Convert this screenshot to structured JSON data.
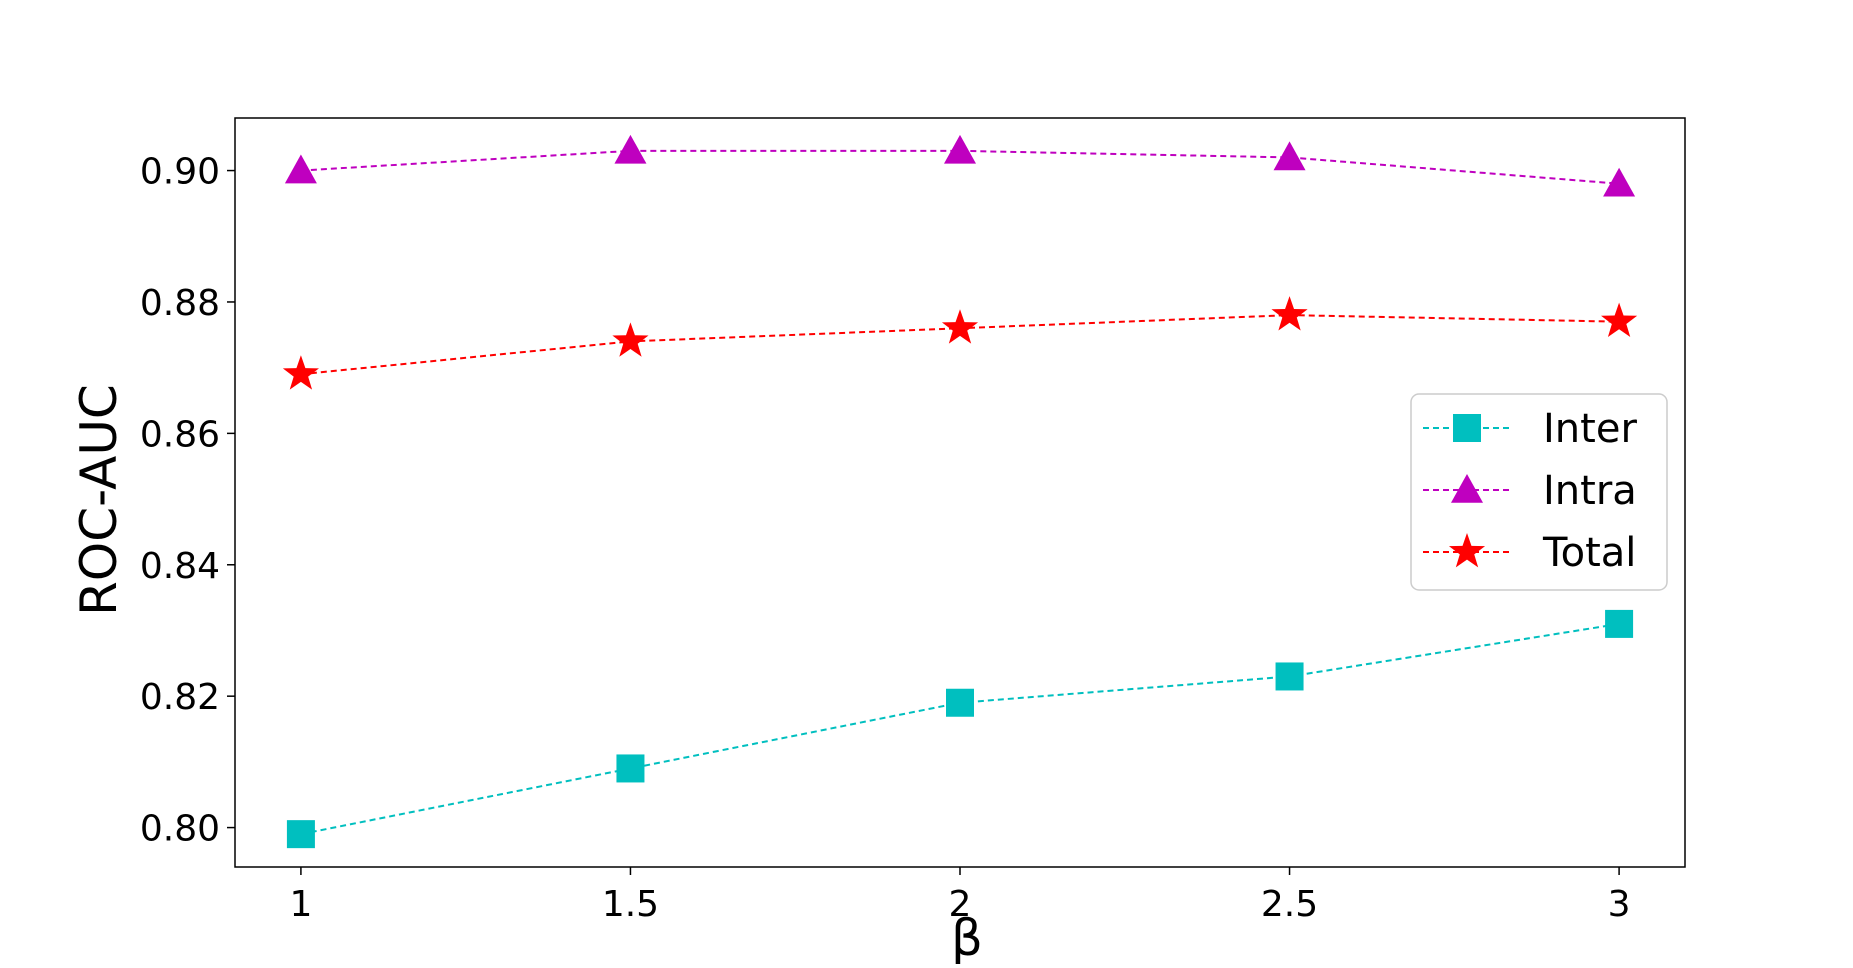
{
  "chart_data": {
    "type": "line",
    "title": "",
    "xlabel": "β",
    "ylabel": "ROC-AUC",
    "x": [
      1,
      1.5,
      2,
      2.5,
      3
    ],
    "x_tick_labels": [
      "1",
      "1.5",
      "2",
      "2.5",
      "3"
    ],
    "xlim": [
      0.9,
      3.1
    ],
    "ylim": [
      0.794,
      0.908
    ],
    "y_ticks": [
      0.8,
      0.82,
      0.84,
      0.86,
      0.88,
      0.9
    ],
    "y_tick_labels": [
      "0.80",
      "0.82",
      "0.84",
      "0.86",
      "0.88",
      "0.90"
    ],
    "grid": false,
    "legend_position": "center-right",
    "series": [
      {
        "name": "Inter",
        "color": "#00bfbf",
        "marker": "square",
        "line_style": "dashed",
        "values": [
          0.799,
          0.809,
          0.819,
          0.823,
          0.831
        ]
      },
      {
        "name": "Intra",
        "color": "#bf00bf",
        "marker": "triangle",
        "line_style": "dashed",
        "values": [
          0.9,
          0.903,
          0.903,
          0.902,
          0.898
        ]
      },
      {
        "name": "Total",
        "color": "#ff0000",
        "marker": "star",
        "line_style": "dashed",
        "values": [
          0.869,
          0.874,
          0.876,
          0.878,
          0.877
        ]
      }
    ]
  }
}
